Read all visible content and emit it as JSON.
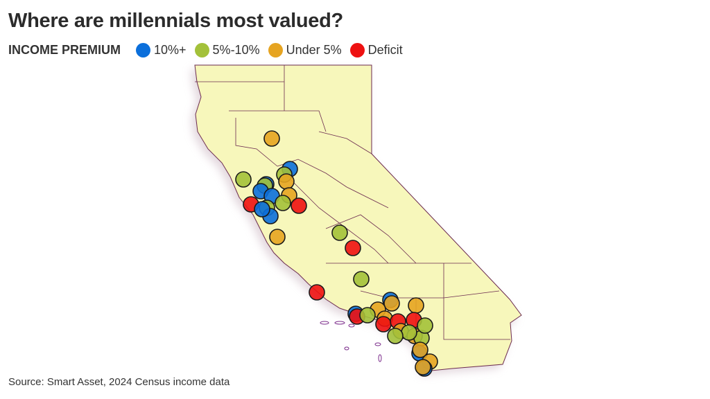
{
  "title": "Where are millennials most valued?",
  "legend": {
    "title": "INCOME PREMIUM",
    "items": [
      {
        "label": "10%+",
        "color": "#0b6fdb"
      },
      {
        "label": "5%-10%",
        "color": "#a3c13a"
      },
      {
        "label": "Under 5%",
        "color": "#e6a421"
      },
      {
        "label": "Deficit",
        "color": "#ee1111"
      }
    ]
  },
  "map": {
    "region": "California",
    "land_color": "#f7f7bb",
    "border_color": "#6b2a4f"
  },
  "source": "Source: Smart Asset, 2024 Census income data",
  "points": [
    "under5",
    "10plus",
    "5to10",
    "10plus",
    "5to10",
    "under5",
    "5to10",
    "10plus",
    "10plus",
    "under5",
    "5to10",
    "deficit",
    "5to10",
    "10plus",
    "deficit",
    "10plus",
    "5to10",
    "under5",
    "deficit",
    "5to10",
    "deficit",
    "10plus",
    "under5",
    "under5",
    "10plus",
    "deficit",
    "under5",
    "5to10",
    "under5",
    "deficit",
    "deficit",
    "deficit",
    "under5",
    "under5",
    "5to10",
    "5to10",
    "5to10",
    "5to10",
    "10plus",
    "under5",
    "under5",
    "10plus",
    "under5"
  ]
}
